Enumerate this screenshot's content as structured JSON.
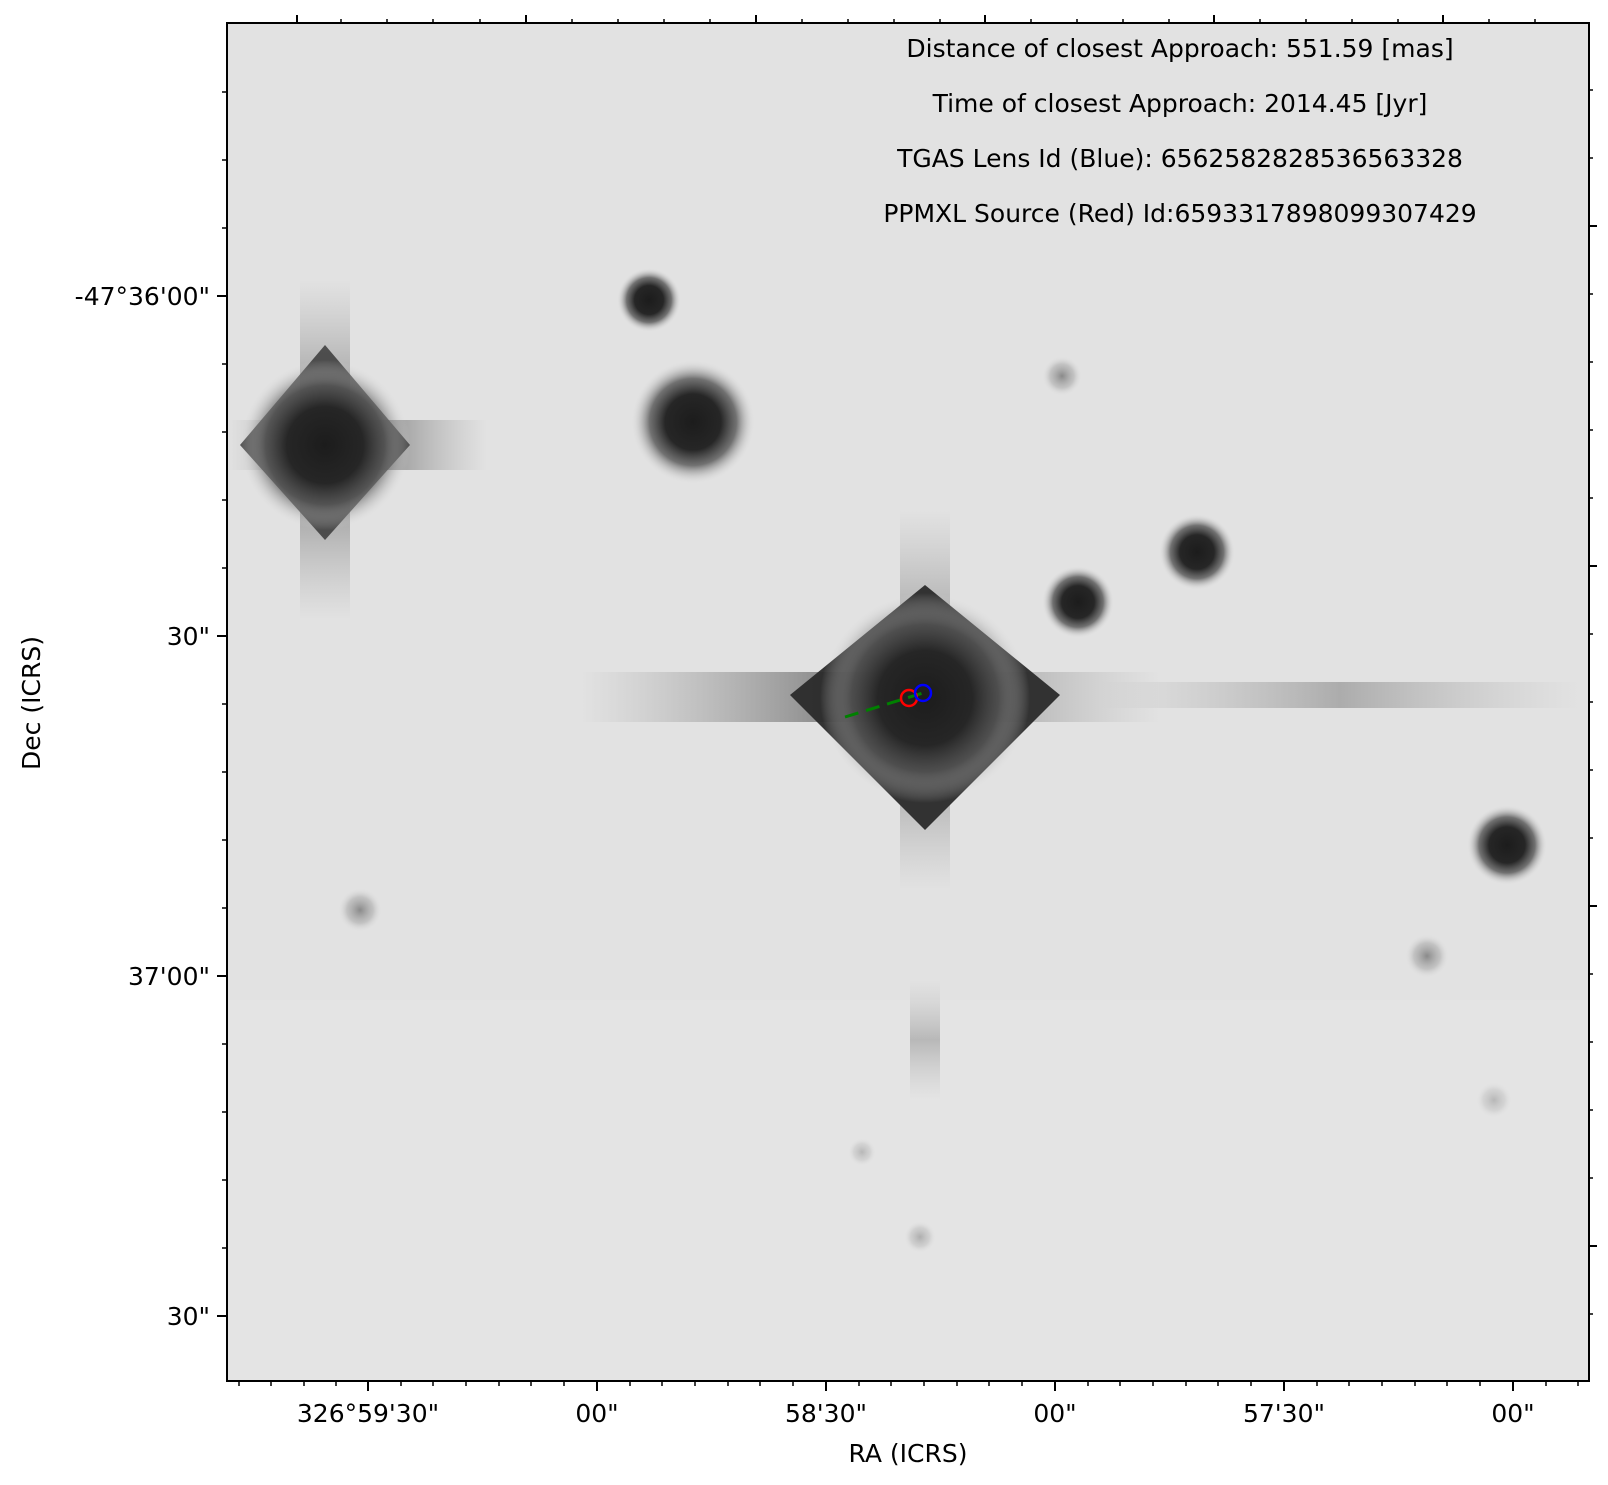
{
  "image": {
    "description_colors": {
      "sky_background": "#e2e2e2",
      "star_core": "#1e1e1e"
    }
  },
  "annotations": {
    "closest_distance": "Distance of closest Approach: 551.59 [mas]",
    "closest_time": "Time of closest Approach: 2014.45 [Jyr]",
    "lens_id": "TGAS Lens Id (Blue): 6562582828536563328",
    "source_id": "PPMXL Source (Red) Id:6593317898099307429"
  },
  "axes": {
    "xlabel": "RA (ICRS)",
    "ylabel": "Dec (ICRS)",
    "x_ticks": [
      "326°59'30\"",
      "00\"",
      "58'30\"",
      "00\"",
      "57'30\"",
      "00\""
    ],
    "y_ticks": [
      "-47°36'00\"",
      "30\"",
      "37'00\"",
      "30\""
    ]
  },
  "markers": {
    "lens_color": "#0000ff",
    "source_color": "#ff0000",
    "track_color": "#008000"
  }
}
